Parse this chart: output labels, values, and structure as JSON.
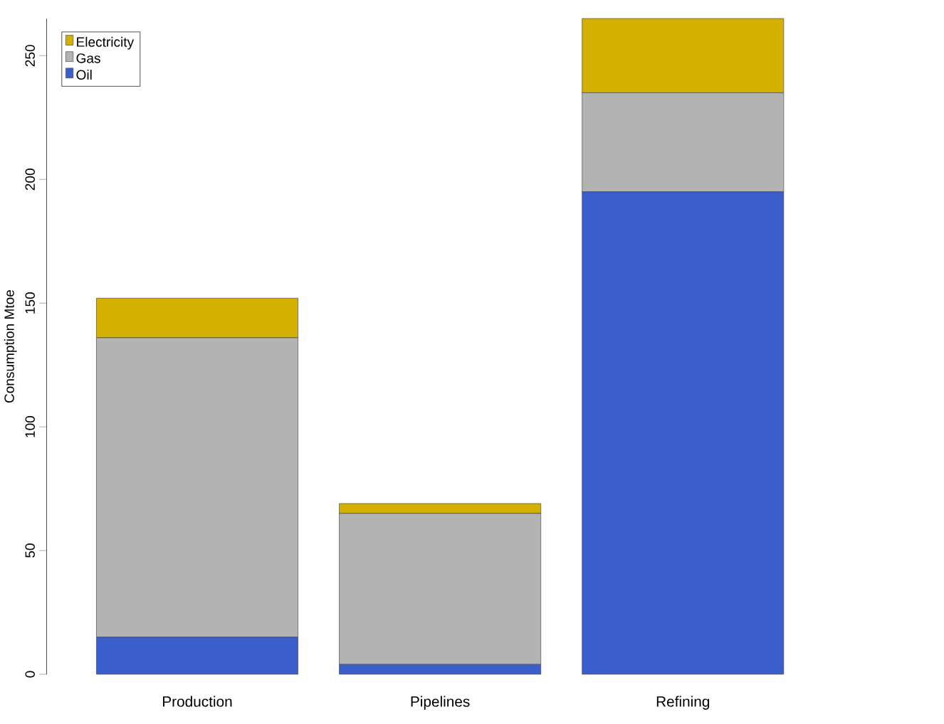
{
  "chart_data": {
    "type": "bar",
    "stacked": true,
    "ylabel": "Consumption Mtoe",
    "categories": [
      "Production",
      "Pipelines",
      "Refining"
    ],
    "series": [
      {
        "name": "Oil",
        "color": "#3a5fcd",
        "values": [
          15,
          4,
          195
        ]
      },
      {
        "name": "Gas",
        "color": "#b3b3b3",
        "values": [
          121,
          61,
          40
        ]
      },
      {
        "name": "Electricity",
        "color": "#d4b000",
        "values": [
          16,
          4,
          30
        ]
      }
    ],
    "ylim": [
      0,
      265
    ],
    "yticks": [
      0,
      50,
      100,
      150,
      200,
      250
    ],
    "legend": "top left"
  }
}
